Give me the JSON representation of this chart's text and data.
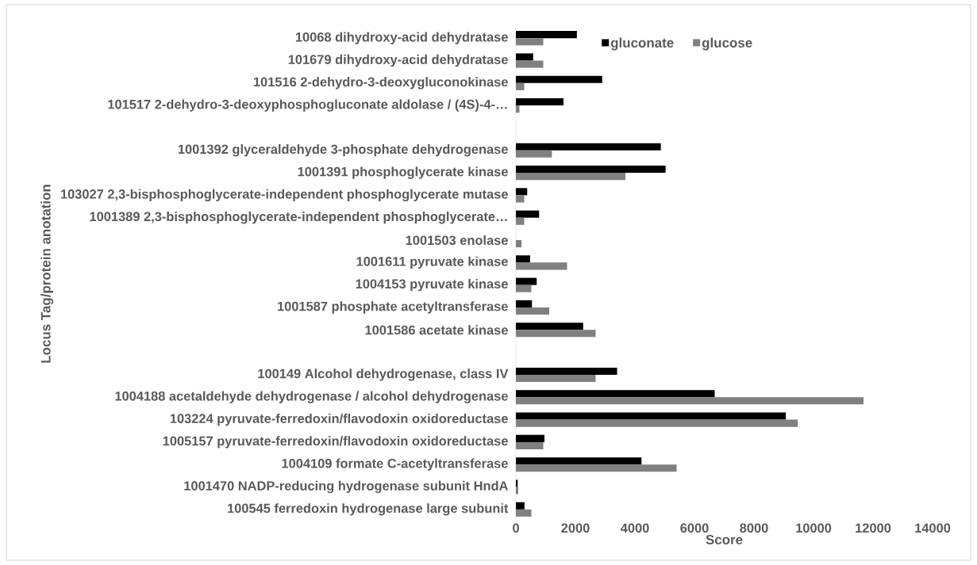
{
  "chart_data": {
    "type": "bar",
    "orientation": "horizontal",
    "xlabel": "Score",
    "ylabel": "Locus Tag/protein anotation",
    "categories": [
      "10068 dihydroxy-acid dehydratase",
      "101679 dihydroxy-acid dehydratase",
      "101516 2-dehydro-3-deoxygluconokinase",
      "101517 2-dehydro-3-deoxyphosphogluconate aldolase / (4S)-4-…",
      null,
      "1001392 glyceraldehyde 3-phosphate dehydrogenase",
      "1001391 phosphoglycerate kinase",
      "103027 2,3-bisphosphoglycerate-independent phosphoglycerate mutase",
      "1001389 2,3-bisphosphoglycerate-independent phosphoglycerate…",
      "1001503 enolase",
      "1001611 pyruvate kinase",
      "1004153 pyruvate kinase",
      "1001587 phosphate acetyltransferase",
      "1001586 acetate kinase",
      null,
      "100149 Alcohol dehydrogenase, class IV",
      "1004188 acetaldehyde dehydrogenase / alcohol dehydrogenase",
      "103224 pyruvate-ferredoxin/flavodoxin oxidoreductase",
      "1005157 pyruvate-ferredoxin/flavodoxin oxidoreductase",
      "1004109 formate C-acetyltransferase",
      "1001470 NADP-reducing hydrogenase subunit HndA",
      "100545 ferredoxin hydrogenase large subunit"
    ],
    "series": [
      {
        "name": "gluconate",
        "color": "#000000",
        "values": [
          2050,
          580,
          2900,
          1600,
          null,
          4870,
          5030,
          380,
          780,
          0,
          480,
          700,
          540,
          2260,
          null,
          3400,
          6680,
          9070,
          960,
          4220,
          60,
          290
        ]
      },
      {
        "name": "glucose",
        "color": "#808080",
        "values": [
          920,
          920,
          280,
          120,
          null,
          1210,
          3680,
          280,
          280,
          190,
          1720,
          520,
          1120,
          2680,
          null,
          2680,
          11680,
          9470,
          920,
          5400,
          80,
          520
        ]
      }
    ],
    "xlim": [
      0,
      14000
    ],
    "xticks": [
      0,
      2000,
      4000,
      6000,
      8000,
      10000,
      12000,
      14000
    ],
    "legend": "top",
    "grid": false
  }
}
